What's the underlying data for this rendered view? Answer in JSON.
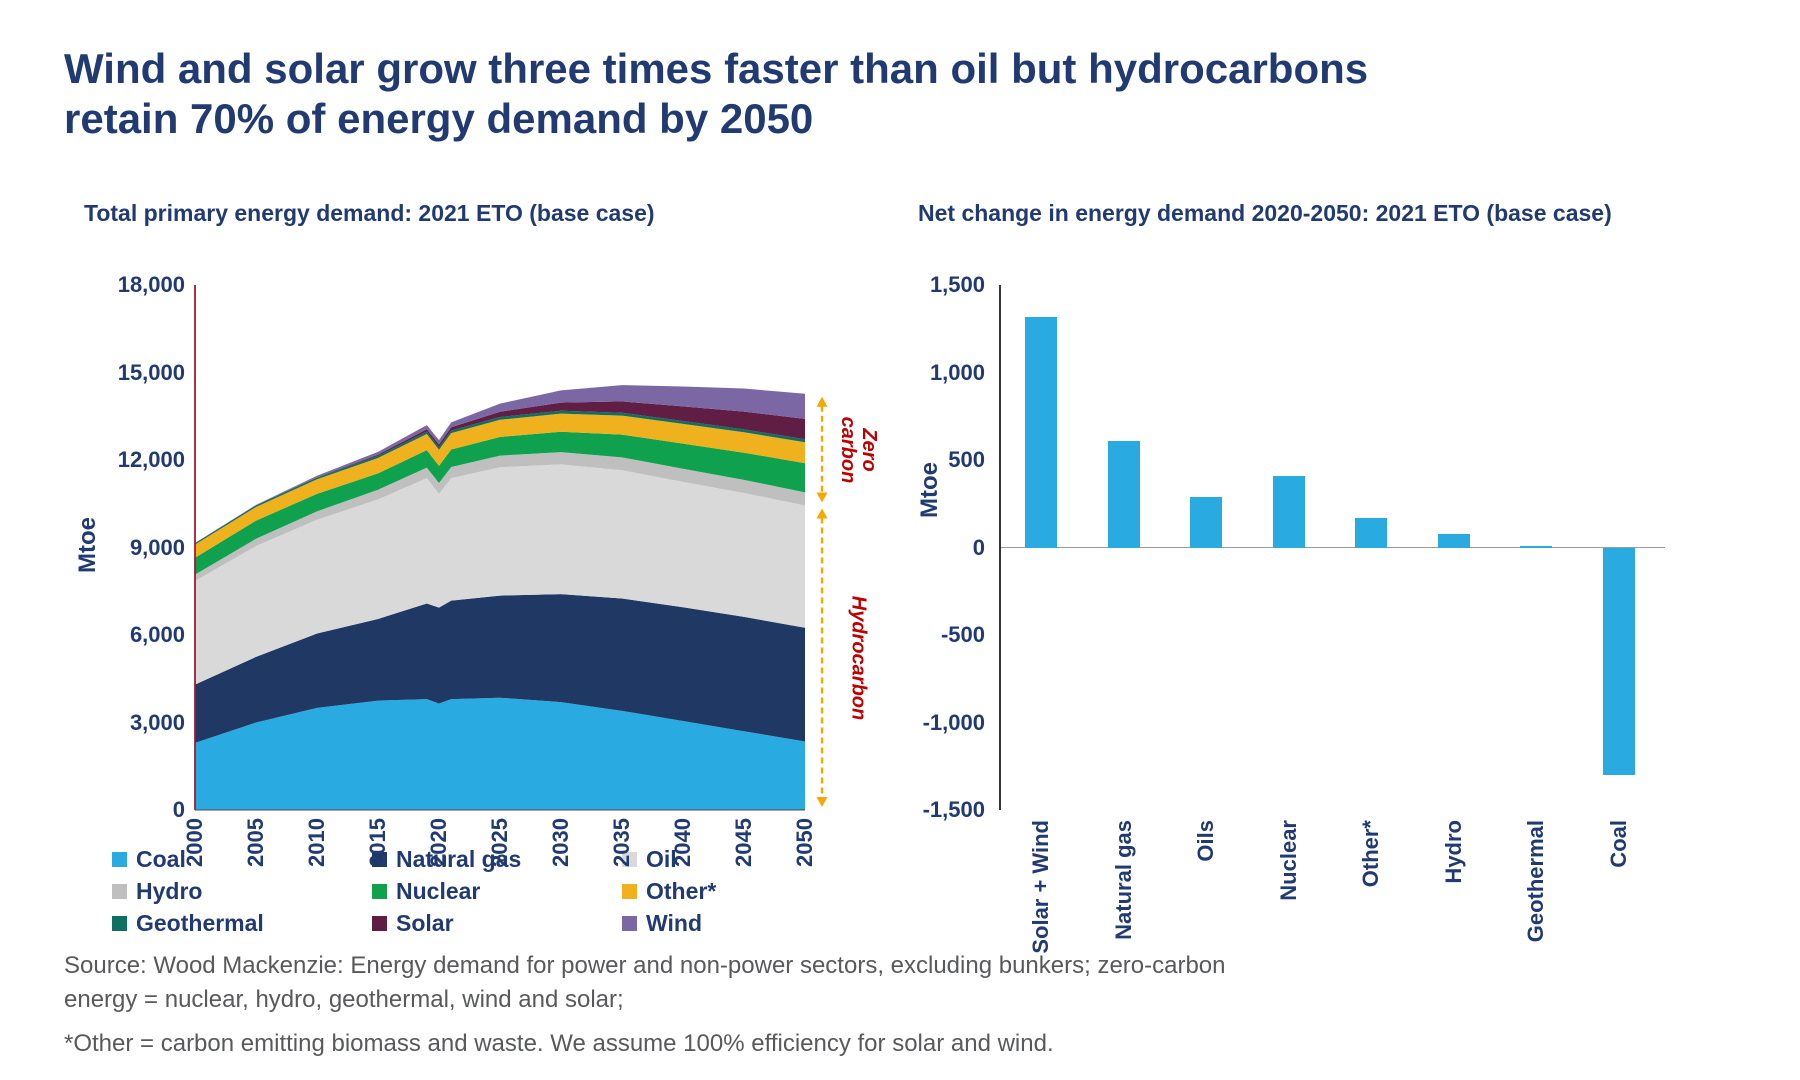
{
  "page": {
    "title_line1": "Wind and solar grow three times faster than oil but hydrocarbons",
    "title_line2": "retain 70% of energy demand by 2050",
    "source_line1": "Source: Wood Mackenzie: Energy demand for power and non-power sectors, excluding bunkers; zero-carbon",
    "source_line2": "energy = nuclear, hydro, geothermal, wind and solar;",
    "source_line3": "*Other = carbon emitting biomass and waste. We assume 100% efficiency for solar and wind."
  },
  "chart_data": [
    {
      "type": "area",
      "title": "Total primary energy demand: 2021 ETO (base case)",
      "ylabel": "Mtoe",
      "ylim": [
        0,
        18000
      ],
      "yticks": [
        "18,000",
        "15,000",
        "12,000",
        "9,000",
        "6,000",
        "3,000",
        "0"
      ],
      "ytick_values": [
        18000,
        15000,
        12000,
        9000,
        6000,
        3000,
        0
      ],
      "xticks": [
        "2000",
        "2005",
        "2010",
        "2015",
        "2020",
        "2025",
        "2030",
        "2035",
        "2040",
        "2045",
        "2050"
      ],
      "x": [
        2000,
        2005,
        2010,
        2015,
        2019,
        2020,
        2021,
        2025,
        2030,
        2035,
        2040,
        2045,
        2050
      ],
      "legend_position": "bottom",
      "grid": false,
      "series": [
        {
          "name": "Coal",
          "color": "#29ABE2",
          "values": [
            2300,
            3000,
            3500,
            3750,
            3800,
            3650,
            3800,
            3850,
            3700,
            3400,
            3050,
            2700,
            2350
          ]
        },
        {
          "name": "Natural gas",
          "color": "#1F3864",
          "values": [
            2000,
            2250,
            2550,
            2800,
            3280,
            3290,
            3380,
            3500,
            3700,
            3850,
            3900,
            3920,
            3900
          ]
        },
        {
          "name": "Oil",
          "color": "#D9D9D9",
          "values": [
            3550,
            3800,
            3900,
            4100,
            4300,
            3900,
            4200,
            4400,
            4450,
            4400,
            4300,
            4250,
            4190
          ]
        },
        {
          "name": "Hydro",
          "color": "#BFBFBF",
          "values": [
            220,
            250,
            290,
            330,
            360,
            370,
            380,
            400,
            420,
            440,
            450,
            450,
            450
          ]
        },
        {
          "name": "Nuclear",
          "color": "#0FA14D",
          "values": [
            580,
            620,
            600,
            560,
            600,
            590,
            600,
            640,
            700,
            780,
            860,
            930,
            1000
          ]
        },
        {
          "name": "Other*",
          "color": "#EFB11D",
          "values": [
            450,
            470,
            500,
            530,
            550,
            550,
            560,
            590,
            620,
            650,
            680,
            700,
            720
          ]
        },
        {
          "name": "Geothermal",
          "color": "#0E6F63",
          "values": [
            50,
            55,
            60,
            70,
            85,
            90,
            92,
            95,
            97,
            98,
            99,
            100,
            100
          ]
        },
        {
          "name": "Solar",
          "color": "#611E44",
          "values": [
            0,
            2,
            10,
            40,
            80,
            90,
            110,
            180,
            280,
            390,
            500,
            610,
            700
          ]
        },
        {
          "name": "Wind",
          "color": "#7C67A5",
          "values": [
            5,
            15,
            50,
            100,
            140,
            150,
            170,
            280,
            420,
            560,
            680,
            790,
            860
          ]
        }
      ],
      "annotations": [
        {
          "label_lines": [
            "Zero",
            "carbon"
          ],
          "span": [
            10440,
            14270
          ],
          "arrow_color": "#F5A800",
          "text_color": "#C00000"
        },
        {
          "label_lines": [
            "Hydrocarbon"
          ],
          "span": [
            0,
            10440
          ],
          "arrow_color": "#F5A800",
          "text_color": "#C00000"
        }
      ]
    },
    {
      "type": "bar",
      "title": "Net change in energy demand 2020-2050: 2021 ETO (base case)",
      "ylabel": "Mtoe",
      "ylim": [
        -1500,
        1500
      ],
      "yticks": [
        "1,500",
        "1,000",
        "500",
        "0",
        "-500",
        "-1,000",
        "-1,500"
      ],
      "ytick_values": [
        1500,
        1000,
        500,
        0,
        -500,
        -1000,
        -1500
      ],
      "categories": [
        "Solar + Wind",
        "Natural gas",
        "Oils",
        "Nuclear",
        "Other*",
        "Hydro",
        "Geothermal",
        "Coal"
      ],
      "values": [
        1320,
        610,
        290,
        410,
        170,
        80,
        10,
        -1300
      ],
      "bar_color": "#29ABE2",
      "grid": false
    }
  ]
}
